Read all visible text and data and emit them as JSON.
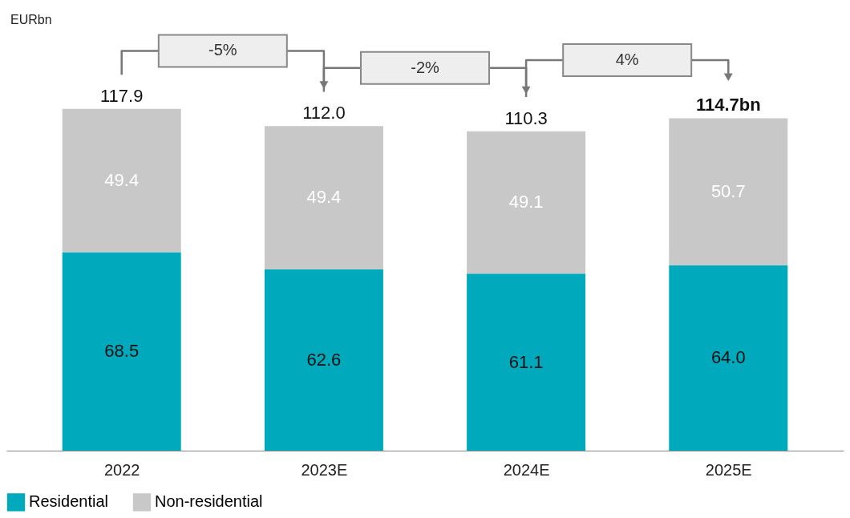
{
  "chart_data": {
    "type": "bar",
    "stacked": true,
    "categories": [
      "2022",
      "2023E",
      "2024E",
      "2025E"
    ],
    "series": [
      {
        "name": "Residential",
        "color": "#00a9bc",
        "values": [
          68.5,
          62.6,
          61.1,
          64.0
        ],
        "value_labels": [
          "68.5",
          "62.6",
          "61.1",
          "64.0"
        ]
      },
      {
        "name": "Non-residential",
        "color": "#c8c8c8",
        "values": [
          49.4,
          49.4,
          49.1,
          50.7
        ],
        "value_labels": [
          "49.4",
          "49.4",
          "49.1",
          "50.7"
        ]
      }
    ],
    "totals": [
      "117.9",
      "112.0",
      "110.3",
      "114.7bn"
    ],
    "annotations": [
      "-5%",
      "-2%",
      "4%",
      "EURbn"
    ],
    "legend": "bottom",
    "grid": false
  }
}
